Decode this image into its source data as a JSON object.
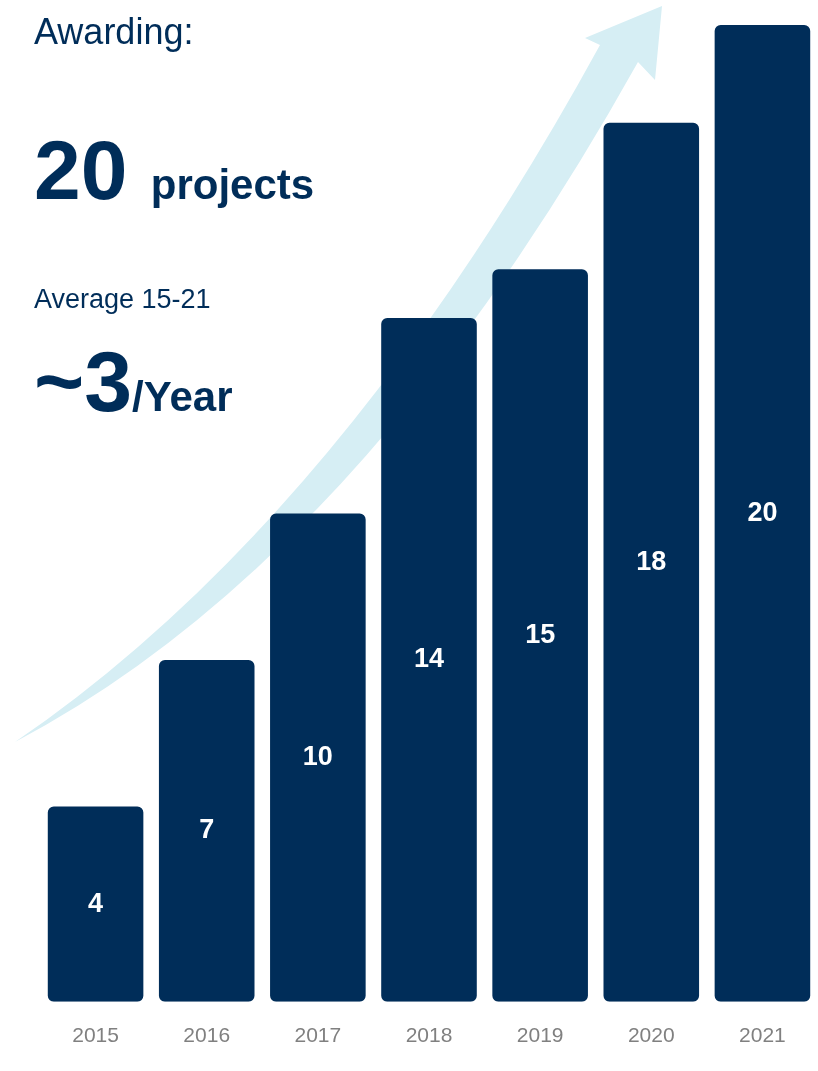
{
  "chart_data": {
    "type": "bar",
    "categories": [
      "2015",
      "2016",
      "2017",
      "2018",
      "2019",
      "2020",
      "2021"
    ],
    "values": [
      4,
      7,
      10,
      14,
      15,
      18,
      20
    ],
    "color": "#002d59",
    "ylim": [
      0,
      20
    ],
    "data_labels": true,
    "tick_labels": "x",
    "annotations": [
      "Awarding:",
      "20 projects",
      "Average 15-21",
      "~3/Year"
    ]
  }
}
